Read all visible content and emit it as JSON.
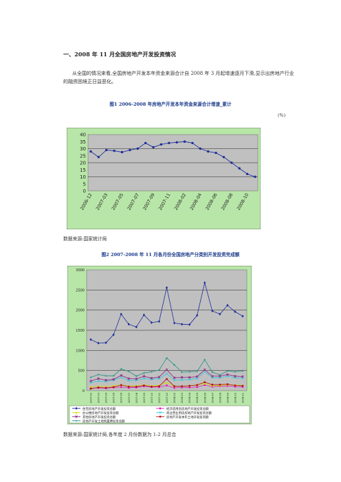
{
  "heading": "一、2008 年 11 月全国房地产开发投资情况",
  "paragraph": "从全国的情况来看,全国房地产开发本年资金来源合计自 2008 年 3 月起增速逐月下滑,显示出房地产行业的融资困境正日益恶化。",
  "figure1": {
    "title": "图1  2006-2008 年房地产开发本年资金来源合计增速_累计",
    "unit": "(%)",
    "source": "数据来源:国家统计局"
  },
  "figure2": {
    "title": "图2  2007-2008 年 11 月各月份全国房地产分类别开发投资完成额",
    "source": "数据来源:国家统计局,各年度 2 月份数据为 1-2 月总合"
  },
  "chart_data": [
    {
      "type": "line",
      "x": [
        "2006-12",
        "2007-02",
        "2007-03",
        "2007-04",
        "2007-05",
        "2007-06",
        "2007-07",
        "2007-08",
        "2007-09",
        "2007-10",
        "2007-11",
        "2007-12",
        "2008-02",
        "2008-03",
        "2008-04",
        "2008-05",
        "2008-06",
        "2008-07",
        "2008-08",
        "2008-09",
        "2008-10",
        "2008-11"
      ],
      "x_tick_labels": [
        "2006-12",
        "2007-03",
        "2007-05",
        "2007-07",
        "2007-09",
        "2007-11",
        "2008-02",
        "2008-04",
        "2008-06",
        "2008-08",
        "2008-10"
      ],
      "series": [
        {
          "values": [
            28,
            24,
            29,
            28.5,
            27.5,
            29,
            30,
            34,
            31,
            33,
            34,
            34.5,
            35,
            34,
            30,
            28,
            27,
            24,
            20,
            16,
            12,
            10
          ],
          "color": "#1f2f99"
        }
      ],
      "ylim": [
        0,
        40
      ],
      "yticks": [
        0,
        5,
        10,
        15,
        20,
        25,
        30,
        35,
        40
      ],
      "grid": true,
      "plot_bg": "#c0c0c0",
      "outer_bg": "#b8e6a8"
    },
    {
      "type": "line",
      "x": [
        "2007-02",
        "2007-03",
        "2007-04",
        "2007-05",
        "2007-06",
        "2007-07",
        "2007-08",
        "2007-09",
        "2007-10",
        "2007-11",
        "2007-12",
        "2008-02",
        "2008-03",
        "2008-04",
        "2008-05",
        "2008-06",
        "2008-07",
        "2008-08",
        "2008-09",
        "2008-10",
        "2008-11"
      ],
      "ylim": [
        0,
        3000
      ],
      "yticks": [
        0,
        500,
        1000,
        1500,
        2000,
        2500,
        3000
      ],
      "grid": true,
      "plot_bg": "#c0c0c0",
      "outer_bg": "#b8e6a8",
      "series": [
        {
          "name": "住宅房地产开发投资总额",
          "color": "#1a2a99",
          "marker": "diamond",
          "values": [
            1270,
            1180,
            1190,
            1390,
            1900,
            1650,
            1580,
            1880,
            1690,
            1720,
            2560,
            1680,
            1650,
            1640,
            1870,
            2680,
            1980,
            1900,
            2120,
            1960,
            1850
          ]
        },
        {
          "name": "经济适用房房地产开发投资总额",
          "color": "#e020c0",
          "marker": "square",
          "values": [
            60,
            70,
            60,
            80,
            90,
            70,
            80,
            110,
            90,
            90,
            130,
            70,
            80,
            80,
            90,
            140,
            100,
            110,
            120,
            100,
            95
          ]
        },
        {
          "name": "办公楼房地产开发投资总额",
          "color": "#d8d800",
          "marker": "triangle",
          "values": [
            100,
            110,
            100,
            120,
            140,
            115,
            120,
            140,
            120,
            130,
            200,
            110,
            110,
            120,
            140,
            180,
            130,
            130,
            150,
            140,
            130
          ]
        },
        {
          "name": "商业营业用房房地产开发投资总额",
          "color": "#30c8e0",
          "marker": "x",
          "values": [
            200,
            240,
            230,
            260,
            330,
            250,
            260,
            300,
            280,
            300,
            420,
            260,
            270,
            280,
            300,
            470,
            320,
            320,
            360,
            320,
            310
          ]
        },
        {
          "name": "其他房地产开发投资总额",
          "color": "#8a2080",
          "marker": "star",
          "values": [
            240,
            300,
            260,
            280,
            380,
            300,
            290,
            360,
            310,
            340,
            520,
            320,
            330,
            330,
            350,
            520,
            360,
            360,
            400,
            360,
            350
          ]
        },
        {
          "name": "房地产开发本年土地开发投资额",
          "color": "#b01010",
          "marker": "circle",
          "values": [
            50,
            80,
            70,
            90,
            140,
            100,
            100,
            130,
            100,
            110,
            290,
            110,
            110,
            120,
            140,
            210,
            150,
            150,
            160,
            130,
            120
          ]
        },
        {
          "name": "房地产开发土地购置费投资总额",
          "color": "#209080",
          "marker": "plus",
          "values": [
            330,
            400,
            370,
            370,
            540,
            480,
            360,
            440,
            470,
            510,
            810,
            640,
            460,
            470,
            480,
            770,
            460,
            390,
            490,
            470,
            490
          ]
        }
      ]
    }
  ]
}
